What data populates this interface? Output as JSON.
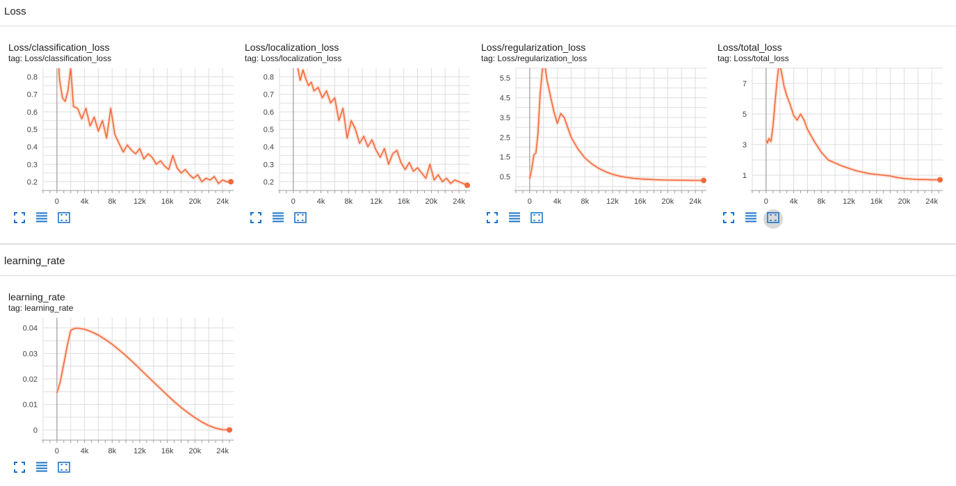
{
  "sections": [
    {
      "title": "Loss",
      "cards": [
        {
          "title": "Loss/classification_loss",
          "tag": "tag: Loss/classification_loss",
          "chart_data": {
            "type": "line",
            "title": "Loss/classification_loss",
            "xlabel": "",
            "ylabel": "",
            "x_ticks": [
              "0",
              "4k",
              "8k",
              "12k",
              "16k",
              "20k",
              "24k"
            ],
            "y_ticks": [
              "0.2",
              "0.3",
              "0.4",
              "0.5",
              "0.6",
              "0.7",
              "0.8"
            ],
            "xlim": [
              -2000,
              25600
            ],
            "ylim": [
              0.15,
              0.85
            ],
            "series": [
              {
                "x": [
                  0,
                  400,
                  800,
                  1200,
                  1600,
                  2000,
                  2400,
                  3000,
                  3600,
                  4200,
                  4800,
                  5400,
                  6000,
                  6600,
                  7200,
                  7800,
                  8400,
                  9000,
                  9600,
                  10200,
                  10800,
                  11400,
                  12000,
                  12600,
                  13200,
                  13800,
                  14400,
                  15000,
                  15600,
                  16200,
                  16800,
                  17400,
                  18000,
                  18600,
                  19200,
                  19800,
                  20400,
                  21000,
                  21600,
                  22200,
                  22800,
                  23400,
                  24000,
                  24600,
                  25200
                ],
                "y": [
                  1.0,
                  0.78,
                  0.68,
                  0.66,
                  0.72,
                  0.85,
                  0.63,
                  0.62,
                  0.56,
                  0.62,
                  0.52,
                  0.57,
                  0.49,
                  0.55,
                  0.45,
                  0.62,
                  0.47,
                  0.42,
                  0.37,
                  0.41,
                  0.38,
                  0.36,
                  0.39,
                  0.33,
                  0.36,
                  0.34,
                  0.3,
                  0.32,
                  0.29,
                  0.27,
                  0.35,
                  0.28,
                  0.25,
                  0.27,
                  0.24,
                  0.22,
                  0.24,
                  0.2,
                  0.22,
                  0.21,
                  0.23,
                  0.19,
                  0.21,
                  0.2,
                  0.2
                ]
              }
            ]
          }
        },
        {
          "title": "Loss/localization_loss",
          "tag": "tag: Loss/localization_loss",
          "chart_data": {
            "type": "line",
            "title": "Loss/localization_loss",
            "xlabel": "",
            "ylabel": "",
            "x_ticks": [
              "0",
              "4k",
              "8k",
              "12k",
              "16k",
              "20k",
              "24k"
            ],
            "y_ticks": [
              "0.2",
              "0.3",
              "0.4",
              "0.5",
              "0.6",
              "0.7",
              "0.8"
            ],
            "xlim": [
              -2000,
              25600
            ],
            "ylim": [
              0.15,
              0.85
            ],
            "series": [
              {
                "x": [
                  600,
                  1000,
                  1400,
                  1800,
                  2200,
                  2600,
                  3000,
                  3600,
                  4200,
                  4800,
                  5400,
                  6000,
                  6600,
                  7200,
                  7800,
                  8400,
                  9000,
                  9600,
                  10200,
                  10800,
                  11400,
                  12000,
                  12600,
                  13200,
                  13800,
                  14400,
                  15000,
                  15600,
                  16200,
                  16800,
                  17400,
                  18000,
                  18600,
                  19200,
                  19800,
                  20400,
                  21000,
                  21600,
                  22200,
                  22800,
                  23400,
                  24000,
                  24600,
                  25200
                ],
                "y": [
                  0.86,
                  0.78,
                  0.84,
                  0.79,
                  0.75,
                  0.77,
                  0.72,
                  0.74,
                  0.68,
                  0.72,
                  0.65,
                  0.68,
                  0.55,
                  0.62,
                  0.45,
                  0.55,
                  0.5,
                  0.42,
                  0.46,
                  0.4,
                  0.44,
                  0.38,
                  0.34,
                  0.39,
                  0.3,
                  0.36,
                  0.38,
                  0.31,
                  0.27,
                  0.31,
                  0.26,
                  0.28,
                  0.25,
                  0.22,
                  0.3,
                  0.21,
                  0.24,
                  0.2,
                  0.22,
                  0.19,
                  0.21,
                  0.2,
                  0.19,
                  0.18
                ]
              }
            ]
          }
        },
        {
          "title": "Loss/regularization_loss",
          "tag": "tag: Loss/regularization_loss",
          "chart_data": {
            "type": "line",
            "title": "Loss/regularization_loss",
            "xlabel": "",
            "ylabel": "",
            "x_ticks": [
              "0",
              "4k",
              "8k",
              "12k",
              "16k",
              "20k",
              "24k"
            ],
            "y_ticks": [
              "0.5",
              "1.5",
              "2.5",
              "3.5",
              "4.5",
              "5.5"
            ],
            "xlim": [
              -2000,
              25600
            ],
            "ylim": [
              -0.2,
              6.0
            ],
            "series": [
              {
                "x": [
                  0,
                  300,
                  600,
                  900,
                  1200,
                  1500,
                  1800,
                  2100,
                  2500,
                  3000,
                  3500,
                  4000,
                  4500,
                  5000,
                  5500,
                  6000,
                  7000,
                  8000,
                  9000,
                  10000,
                  11000,
                  12000,
                  13000,
                  14000,
                  15000,
                  16000,
                  18000,
                  20000,
                  22000,
                  24000,
                  25200
                ],
                "y": [
                  0.4,
                  0.9,
                  1.6,
                  1.7,
                  2.7,
                  4.6,
                  5.8,
                  6.4,
                  5.4,
                  4.6,
                  3.8,
                  3.2,
                  3.7,
                  3.5,
                  3.0,
                  2.5,
                  1.9,
                  1.45,
                  1.15,
                  0.92,
                  0.75,
                  0.62,
                  0.53,
                  0.47,
                  0.42,
                  0.39,
                  0.35,
                  0.33,
                  0.32,
                  0.31,
                  0.31
                ]
              }
            ]
          }
        },
        {
          "title": "Loss/total_loss",
          "tag": "tag: Loss/total_loss",
          "chart_data": {
            "type": "line",
            "title": "Loss/total_loss",
            "xlabel": "",
            "ylabel": "",
            "x_ticks": [
              "0",
              "4k",
              "8k",
              "12k",
              "16k",
              "20k",
              "24k"
            ],
            "y_ticks": [
              "1",
              "3",
              "5",
              "7"
            ],
            "xlim": [
              -2000,
              25600
            ],
            "ylim": [
              0.0,
              8.0
            ],
            "series": [
              {
                "x": [
                  0,
                  200,
                  400,
                  700,
                  1000,
                  1300,
                  1600,
                  1900,
                  2200,
                  2600,
                  3000,
                  3500,
                  4000,
                  4500,
                  5000,
                  5500,
                  6000,
                  7000,
                  8000,
                  9000,
                  10000,
                  11000,
                  12000,
                  13000,
                  14000,
                  15000,
                  16000,
                  17000,
                  18000,
                  19000,
                  20000,
                  21000,
                  22000,
                  23000,
                  24000,
                  25200
                ],
                "y": [
                  3.3,
                  3.1,
                  3.4,
                  3.2,
                  4.2,
                  5.8,
                  7.2,
                  8.4,
                  7.8,
                  6.8,
                  6.2,
                  5.6,
                  4.9,
                  4.6,
                  5.0,
                  4.6,
                  4.0,
                  3.2,
                  2.5,
                  2.0,
                  1.8,
                  1.6,
                  1.45,
                  1.3,
                  1.2,
                  1.1,
                  1.05,
                  1.0,
                  0.95,
                  0.85,
                  0.78,
                  0.75,
                  0.72,
                  0.72,
                  0.7,
                  0.7
                ]
              }
            ]
          }
        }
      ]
    },
    {
      "title": "learning_rate",
      "cards": [
        {
          "title": "learning_rate",
          "tag": "tag: learning_rate",
          "chart_data": {
            "type": "line",
            "title": "learning_rate",
            "xlabel": "",
            "ylabel": "",
            "x_ticks": [
              "0",
              "4k",
              "8k",
              "12k",
              "16k",
              "20k",
              "24k"
            ],
            "y_ticks": [
              "0",
              "0.01",
              "0.02",
              "0.03",
              "0.04"
            ],
            "xlim": [
              -2000,
              25600
            ],
            "ylim": [
              -0.004,
              0.044
            ],
            "series": [
              {
                "x": [
                  0,
                  500,
                  1000,
                  1500,
                  2000,
                  2500,
                  3000,
                  4000,
                  5000,
                  6000,
                  7000,
                  8000,
                  9000,
                  10000,
                  11000,
                  12000,
                  13000,
                  14000,
                  15000,
                  16000,
                  17000,
                  18000,
                  19000,
                  20000,
                  21000,
                  22000,
                  23000,
                  24000,
                  25000
                ],
                "y": [
                  0.0145,
                  0.019,
                  0.026,
                  0.033,
                  0.039,
                  0.0398,
                  0.0399,
                  0.0395,
                  0.0385,
                  0.0372,
                  0.0355,
                  0.0336,
                  0.0314,
                  0.0291,
                  0.0266,
                  0.024,
                  0.0214,
                  0.0188,
                  0.0162,
                  0.0136,
                  0.0111,
                  0.0088,
                  0.0067,
                  0.0048,
                  0.0031,
                  0.0017,
                  0.0007,
                  0.0001,
                  0.0
                ]
              }
            ]
          }
        }
      ]
    }
  ],
  "colors": {
    "line": "#f4693b",
    "line_faint": "#fbd2c2",
    "grid": "#dddddd",
    "axis": "#9e9e9e",
    "icon": "#1a73c8",
    "header_text": "#212121"
  },
  "toolbar": {
    "fullscreen_icon": "fullscreen-icon",
    "data_table_icon": "data-table-icon",
    "fit_domain_icon": "fit-domain-icon"
  }
}
